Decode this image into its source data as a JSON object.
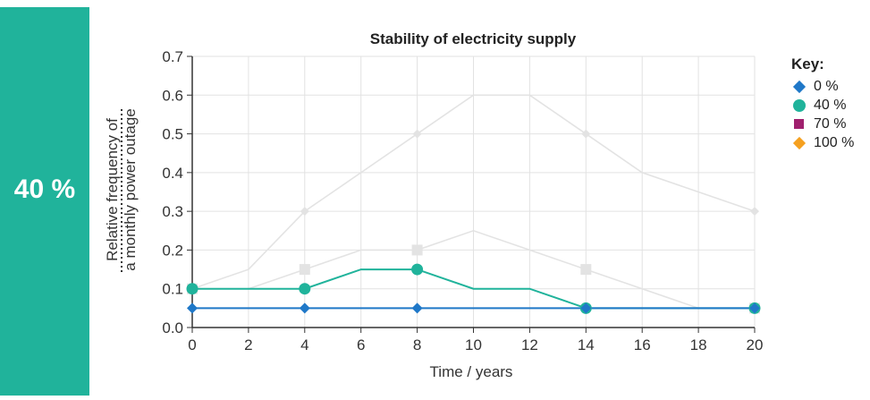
{
  "side_panel": {
    "label": "40 %",
    "color": "#20b39b"
  },
  "chart_data": {
    "type": "line",
    "title": "Stability of electricity supply",
    "xlabel": "Time / years",
    "ylabel_lines": [
      "Relative frequency of",
      "a monthly power outage"
    ],
    "xlim": [
      0,
      20
    ],
    "ylim": [
      0,
      0.7
    ],
    "x_ticks": [
      "0",
      "2",
      "4",
      "6",
      "8",
      "10",
      "12",
      "14",
      "16",
      "18",
      "20"
    ],
    "y_ticks": [
      "0.0",
      "0.1",
      "0.2",
      "0.3",
      "0.4",
      "0.5",
      "0.6",
      "0.7"
    ],
    "grid": true,
    "legend_position": "right",
    "legend_title": "Key:",
    "series": [
      {
        "name": "0 %",
        "color": "#1f78c8",
        "marker": "diamond",
        "active": true,
        "x": [
          0,
          2,
          4,
          6,
          8,
          10,
          12,
          14,
          16,
          18,
          20
        ],
        "y": [
          0.05,
          0.05,
          0.05,
          0.05,
          0.05,
          0.05,
          0.05,
          0.05,
          0.05,
          0.05,
          0.05
        ],
        "marker_x": [
          0,
          4,
          8,
          14,
          20
        ]
      },
      {
        "name": "40 %",
        "color": "#20b39b",
        "marker": "circle",
        "active": true,
        "x": [
          0,
          2,
          4,
          6,
          8,
          10,
          12,
          14,
          16,
          18,
          20
        ],
        "y": [
          0.1,
          0.1,
          0.1,
          0.15,
          0.15,
          0.1,
          0.1,
          0.05,
          0.05,
          0.05,
          0.05
        ],
        "marker_x": [
          0,
          4,
          8,
          14,
          20
        ]
      },
      {
        "name": "70 %",
        "color": "#a0206e",
        "marker": "square",
        "active": false,
        "x": [
          0,
          2,
          4,
          6,
          8,
          10,
          12,
          14,
          16,
          18,
          20
        ],
        "y": [
          0.1,
          0.1,
          0.15,
          0.2,
          0.2,
          0.25,
          0.2,
          0.15,
          0.1,
          0.05,
          0.05
        ],
        "marker_x": [
          0,
          4,
          8,
          14,
          20
        ]
      },
      {
        "name": "100 %",
        "color": "#f5a020",
        "marker": "diamond",
        "active": false,
        "x": [
          0,
          2,
          4,
          6,
          8,
          10,
          12,
          14,
          16,
          18,
          20
        ],
        "y": [
          0.1,
          0.15,
          0.3,
          0.4,
          0.5,
          0.6,
          0.6,
          0.5,
          0.4,
          0.35,
          0.3
        ],
        "marker_x": [
          0,
          4,
          8,
          14,
          20
        ]
      }
    ]
  }
}
